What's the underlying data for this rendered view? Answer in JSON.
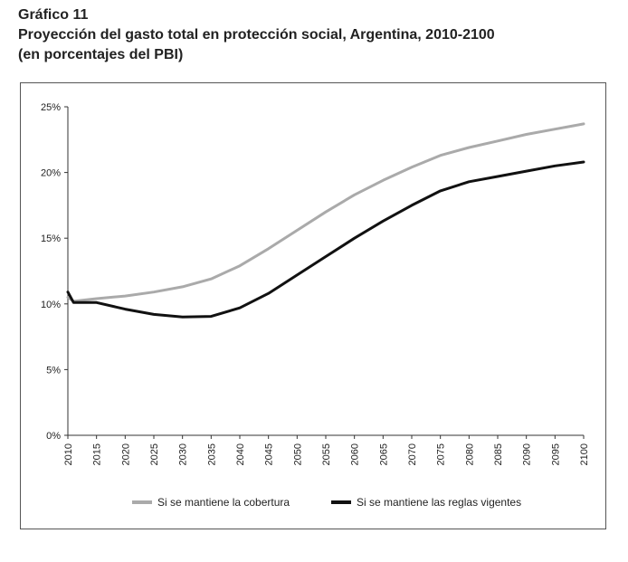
{
  "header": {
    "label": "Gráfico 11",
    "title": "Proyección del gasto total en protección social, Argentina, 2010-2100",
    "subtitle": "(en porcentajes del PBI)"
  },
  "chart_data": {
    "type": "line",
    "title": "Proyección del gasto total en protección social, Argentina, 2010-2100",
    "subtitle": "(en porcentajes del PBI)",
    "xlabel": "",
    "ylabel": "",
    "xlim": [
      2010,
      2100
    ],
    "ylim": [
      0,
      25
    ],
    "x_ticks": [
      "2010",
      "2015",
      "2020",
      "2025",
      "2030",
      "2035",
      "2040",
      "2045",
      "2050",
      "2055",
      "2060",
      "2065",
      "2070",
      "2075",
      "2080",
      "2085",
      "2090",
      "2095",
      "2100"
    ],
    "y_ticks": [
      "0%",
      "5%",
      "10%",
      "15%",
      "20%",
      "25%"
    ],
    "grid": false,
    "legend_position": "bottom",
    "x": [
      2010,
      2011,
      2015,
      2020,
      2025,
      2030,
      2035,
      2040,
      2045,
      2050,
      2055,
      2060,
      2065,
      2070,
      2075,
      2080,
      2085,
      2090,
      2095,
      2100
    ],
    "series": [
      {
        "name": "Si se mantiene la cobertura",
        "color": "#aaaaaa",
        "values": [
          10.5,
          10.2,
          10.4,
          10.6,
          10.9,
          11.3,
          11.9,
          12.9,
          14.2,
          15.6,
          17.0,
          18.3,
          19.4,
          20.4,
          21.3,
          21.9,
          22.4,
          22.9,
          23.3,
          23.7
        ]
      },
      {
        "name": "Si se mantiene las reglas vigentes",
        "color": "#111111",
        "values": [
          10.9,
          10.1,
          10.1,
          9.6,
          9.2,
          9.0,
          9.05,
          9.7,
          10.8,
          12.2,
          13.6,
          15.0,
          16.3,
          17.5,
          18.6,
          19.3,
          19.7,
          20.1,
          20.5,
          20.8
        ]
      }
    ]
  }
}
